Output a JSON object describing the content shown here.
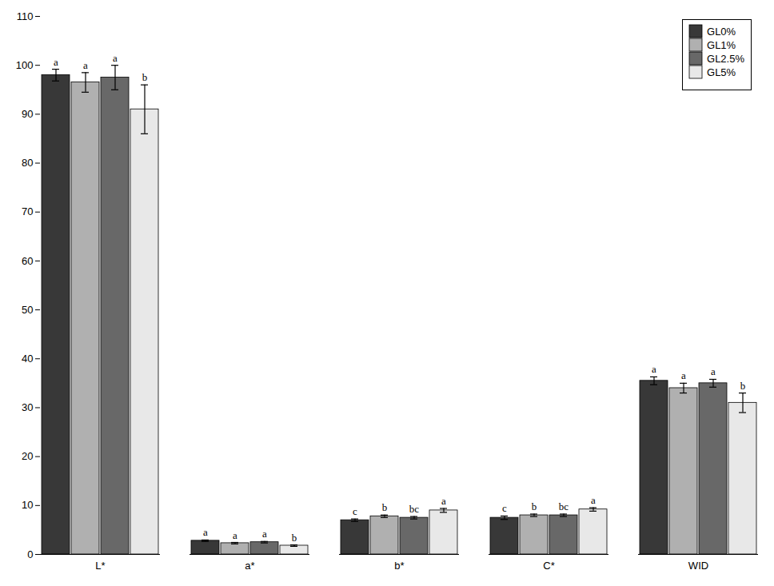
{
  "chart_data": {
    "type": "bar",
    "categories": [
      "L*",
      "a*",
      "b*",
      "C*",
      "WID"
    ],
    "series": [
      {
        "name": "GL0%",
        "color": "#383838",
        "values": [
          98.0,
          2.8,
          7.0,
          7.5,
          35.5
        ],
        "errors": [
          1.2,
          0.15,
          0.25,
          0.35,
          0.8
        ],
        "letters": [
          "a",
          "a",
          "c",
          "c",
          "a"
        ]
      },
      {
        "name": "GL1%",
        "color": "#b0b0b0",
        "values": [
          96.5,
          2.3,
          7.8,
          8.0,
          34.0
        ],
        "errors": [
          2.0,
          0.15,
          0.25,
          0.25,
          1.0
        ],
        "letters": [
          "a",
          "a",
          "b",
          "b",
          "a"
        ]
      },
      {
        "name": "GL2.5%",
        "color": "#686868",
        "values": [
          97.5,
          2.5,
          7.5,
          8.0,
          35.0
        ],
        "errors": [
          2.5,
          0.15,
          0.25,
          0.25,
          0.8
        ],
        "letters": [
          "a",
          "a",
          "bc",
          "bc",
          "a"
        ]
      },
      {
        "name": "GL5%",
        "color": "#e8e8e8",
        "values": [
          91.0,
          1.8,
          9.0,
          9.2,
          31.0
        ],
        "errors": [
          5.0,
          0.15,
          0.4,
          0.35,
          2.0
        ],
        "letters": [
          "b",
          "b",
          "a",
          "a",
          "b"
        ]
      }
    ],
    "ylim": [
      0,
      110
    ],
    "yticks": [
      0,
      10,
      20,
      30,
      40,
      50,
      60,
      70,
      80,
      90,
      100,
      110
    ],
    "grid": false,
    "legend": "upper right"
  }
}
